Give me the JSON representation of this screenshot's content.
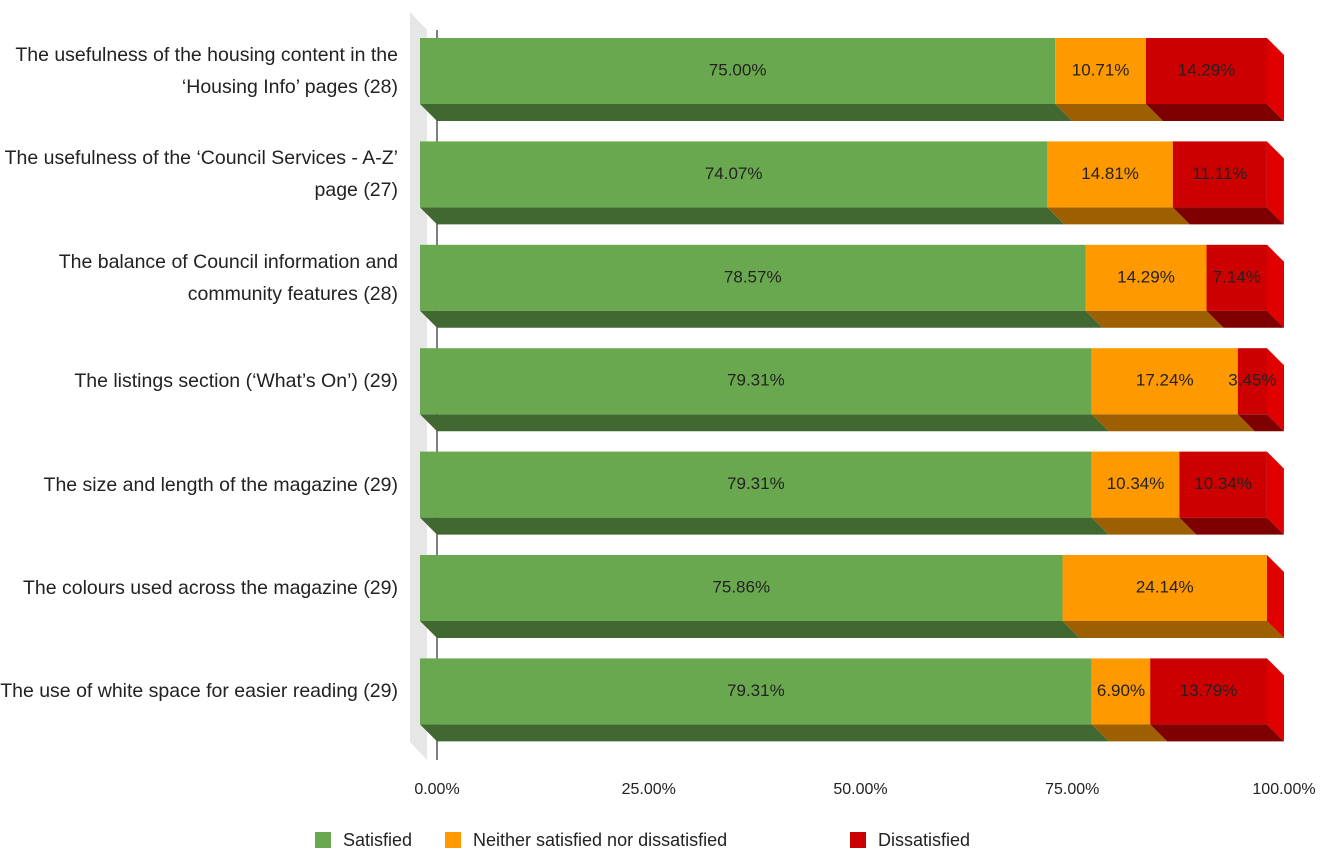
{
  "chart_data": {
    "type": "bar3d_stacked_horizontal",
    "categories": [
      "The usefulness of the housing content in the ‘Housing Info’ pages (28)",
      "The usefulness of the ‘Council Services - A-Z’ page (27)",
      "The balance of Council information and community features (28)",
      "The listings section (‘What’s On’) (29)",
      "The size and length of the magazine (29)",
      "The colours used across the magazine (29)",
      "The use of white space for easier reading (29)"
    ],
    "series": [
      {
        "name": "Satisfied",
        "color": "#6aa84f",
        "values": [
          75,
          74.07,
          78.57,
          79.31,
          79.31,
          75.86,
          79.31
        ],
        "value_labels": [
          "75.00%",
          "74.07%",
          "78.57%",
          "79.31%",
          "79.31%",
          "75.86%",
          "79.31%"
        ]
      },
      {
        "name": "Neither satisfied nor dissatisfied",
        "color": "#ff9900",
        "values": [
          10.71,
          14.81,
          14.29,
          17.24,
          10.34,
          24.14,
          6.9
        ],
        "value_labels": [
          "10.71%",
          "14.81%",
          "14.29%",
          "17.24%",
          "10.34%",
          "24.14%",
          "6.90%"
        ]
      },
      {
        "name": "Dissatisfied",
        "color": "#cc0000",
        "values": [
          14.29,
          11.11,
          7.14,
          3.45,
          10.34,
          null,
          13.79
        ],
        "value_labels": [
          "14.29%",
          "11.11%",
          "7.14%",
          "3.45%",
          "10.34%",
          null,
          "13.79%"
        ]
      }
    ],
    "xlim": [
      0,
      100
    ],
    "xticks": [
      {
        "value": 0,
        "label": "0.00%"
      },
      {
        "value": 25,
        "label": "25.00%"
      },
      {
        "value": 50,
        "label": "50.00%"
      },
      {
        "value": 75,
        "label": "75.00%"
      },
      {
        "value": 100,
        "label": "100.00%"
      }
    ],
    "legend": "bottom"
  }
}
